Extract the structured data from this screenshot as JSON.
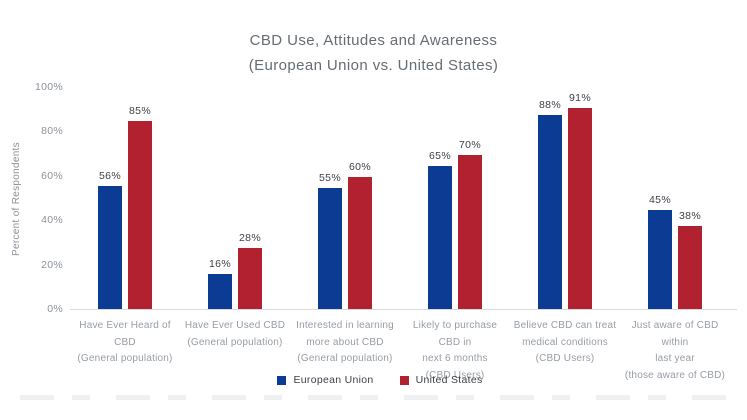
{
  "title": {
    "line1": "CBD Use, Attitudes and Awareness",
    "line2": "(European Union vs. United States)"
  },
  "y_axis": {
    "label": "Percent of Respondents"
  },
  "legend": {
    "items": [
      {
        "label": "European Union",
        "color": "#0c3b94"
      },
      {
        "label": "United States",
        "color": "#b2212f"
      }
    ]
  },
  "chart_data": {
    "type": "bar",
    "title": "CBD Use, Attitudes and Awareness (European Union vs. United States)",
    "ylabel": "Percent of Respondents",
    "ylim": [
      0,
      100
    ],
    "yticks": [
      0,
      20,
      40,
      60,
      80,
      100
    ],
    "ytick_suffix": "%",
    "grid": false,
    "legend_position": "bottom",
    "value_suffix": "%",
    "categories": [
      [
        "Have Ever Heard of CBD",
        "(General population)"
      ],
      [
        "Have Ever Used CBD",
        "(General population)"
      ],
      [
        "Interested in learning",
        "more about CBD",
        "(General population)"
      ],
      [
        "Likely to purchase CBD in",
        "next 6 months",
        "(CBD Users)"
      ],
      [
        "Believe CBD can treat",
        "medical conditions",
        "(CBD Users)"
      ],
      [
        "Just aware of CBD within",
        "last year",
        "(those aware of CBD)"
      ]
    ],
    "series": [
      {
        "name": "European Union",
        "color": "#0c3b94",
        "values": [
          56,
          16,
          55,
          65,
          88,
          45
        ]
      },
      {
        "name": "United States",
        "color": "#b2212f",
        "values": [
          85,
          28,
          60,
          70,
          91,
          38
        ]
      }
    ]
  }
}
